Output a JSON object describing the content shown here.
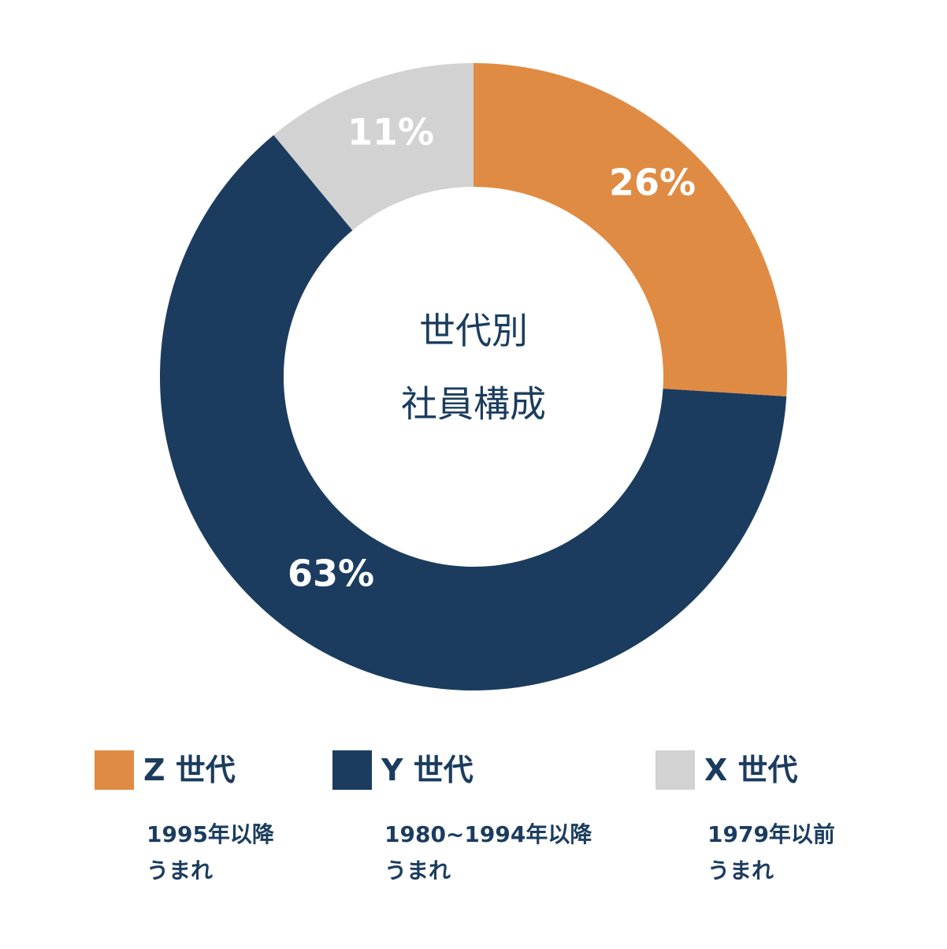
{
  "chart_data": {
    "type": "pie",
    "center_label": [
      "世代別",
      "社員構成"
    ],
    "slices": [
      {
        "name": "Z 世代",
        "value": 26,
        "label": "26%",
        "color": "#e08b43",
        "desc": [
          "1995年以降",
          "うまれ"
        ]
      },
      {
        "name": "Y 世代",
        "value": 63,
        "label": "63%",
        "color": "#1b3c5e",
        "desc": [
          "1980~1994年以降",
          "うまれ"
        ]
      },
      {
        "name": "X 世代",
        "value": 11,
        "label": "11%",
        "color": "#d2d2d2",
        "desc": [
          "1979年以前",
          "うまれ"
        ]
      }
    ],
    "legend": "bottom"
  }
}
